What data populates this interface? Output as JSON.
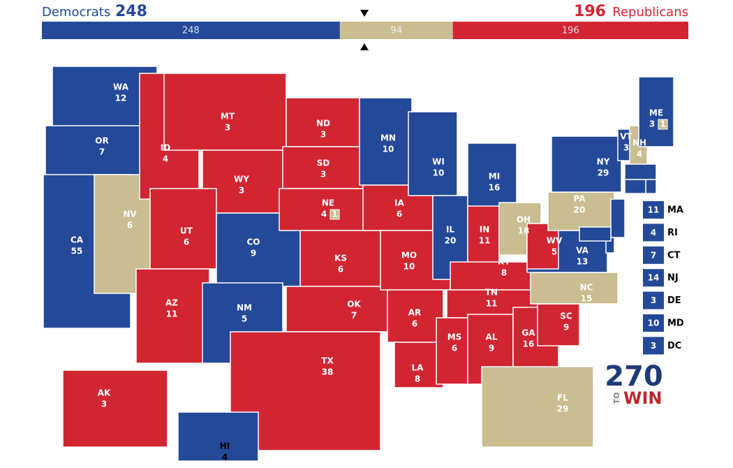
{
  "header": {
    "dem_label": "Democrats",
    "dem_total": 248,
    "rep_total": 196,
    "rep_label": "Republicans"
  },
  "tally": {
    "segments": [
      {
        "party": "dem",
        "value": 248
      },
      {
        "party": "tossup",
        "value": 94
      },
      {
        "party": "rep",
        "value": 196
      }
    ]
  },
  "colors": {
    "dem": "#244999",
    "rep": "#d22532",
    "tossup": "#c9bd91"
  },
  "states": [
    {
      "abbr": "WA",
      "votes": 12,
      "party": "dem"
    },
    {
      "abbr": "OR",
      "votes": 7,
      "party": "dem"
    },
    {
      "abbr": "CA",
      "votes": 55,
      "party": "dem"
    },
    {
      "abbr": "NV",
      "votes": 6,
      "party": "tossup"
    },
    {
      "abbr": "ID",
      "votes": 4,
      "party": "rep"
    },
    {
      "abbr": "MT",
      "votes": 3,
      "party": "rep"
    },
    {
      "abbr": "WY",
      "votes": 3,
      "party": "rep"
    },
    {
      "abbr": "UT",
      "votes": 6,
      "party": "rep"
    },
    {
      "abbr": "AZ",
      "votes": 11,
      "party": "rep"
    },
    {
      "abbr": "CO",
      "votes": 9,
      "party": "dem"
    },
    {
      "abbr": "NM",
      "votes": 5,
      "party": "dem"
    },
    {
      "abbr": "ND",
      "votes": 3,
      "party": "rep"
    },
    {
      "abbr": "SD",
      "votes": 3,
      "party": "rep"
    },
    {
      "abbr": "NE",
      "votes": 4,
      "party": "rep",
      "district": {
        "votes": 1,
        "party": "tossup"
      }
    },
    {
      "abbr": "KS",
      "votes": 6,
      "party": "rep"
    },
    {
      "abbr": "OK",
      "votes": 7,
      "party": "rep"
    },
    {
      "abbr": "TX",
      "votes": 38,
      "party": "rep"
    },
    {
      "abbr": "MN",
      "votes": 10,
      "party": "dem"
    },
    {
      "abbr": "IA",
      "votes": 6,
      "party": "rep"
    },
    {
      "abbr": "MO",
      "votes": 10,
      "party": "rep"
    },
    {
      "abbr": "AR",
      "votes": 6,
      "party": "rep"
    },
    {
      "abbr": "LA",
      "votes": 8,
      "party": "rep"
    },
    {
      "abbr": "WI",
      "votes": 10,
      "party": "dem"
    },
    {
      "abbr": "IL",
      "votes": 20,
      "party": "dem"
    },
    {
      "abbr": "MI",
      "votes": 16,
      "party": "dem"
    },
    {
      "abbr": "IN",
      "votes": 11,
      "party": "rep"
    },
    {
      "abbr": "OH",
      "votes": 18,
      "party": "tossup"
    },
    {
      "abbr": "KY",
      "votes": 8,
      "party": "rep"
    },
    {
      "abbr": "TN",
      "votes": 11,
      "party": "rep"
    },
    {
      "abbr": "MS",
      "votes": 6,
      "party": "rep"
    },
    {
      "abbr": "AL",
      "votes": 9,
      "party": "rep"
    },
    {
      "abbr": "GA",
      "votes": 16,
      "party": "rep"
    },
    {
      "abbr": "FL",
      "votes": 29,
      "party": "tossup"
    },
    {
      "abbr": "SC",
      "votes": 9,
      "party": "rep"
    },
    {
      "abbr": "NC",
      "votes": 15,
      "party": "tossup"
    },
    {
      "abbr": "VA",
      "votes": 13,
      "party": "dem"
    },
    {
      "abbr": "WV",
      "votes": 5,
      "party": "rep"
    },
    {
      "abbr": "PA",
      "votes": 20,
      "party": "tossup"
    },
    {
      "abbr": "NY",
      "votes": 29,
      "party": "dem"
    },
    {
      "abbr": "VT",
      "votes": 3,
      "party": "dem"
    },
    {
      "abbr": "NH",
      "votes": 4,
      "party": "tossup"
    },
    {
      "abbr": "ME",
      "votes": 3,
      "party": "dem",
      "district": {
        "votes": 1,
        "party": "tossup"
      }
    },
    {
      "abbr": "AK",
      "votes": 3,
      "party": "rep"
    },
    {
      "abbr": "HI",
      "votes": 4,
      "party": "dem"
    }
  ],
  "small_states": [
    {
      "abbr": "MA",
      "votes": 11,
      "party": "dem"
    },
    {
      "abbr": "RI",
      "votes": 4,
      "party": "dem"
    },
    {
      "abbr": "CT",
      "votes": 7,
      "party": "dem"
    },
    {
      "abbr": "NJ",
      "votes": 14,
      "party": "dem"
    },
    {
      "abbr": "DE",
      "votes": 3,
      "party": "dem"
    },
    {
      "abbr": "MD",
      "votes": 10,
      "party": "dem"
    },
    {
      "abbr": "DC",
      "votes": 3,
      "party": "dem"
    }
  ],
  "logo": {
    "number": "270",
    "to": "TO",
    "win": "WIN"
  }
}
